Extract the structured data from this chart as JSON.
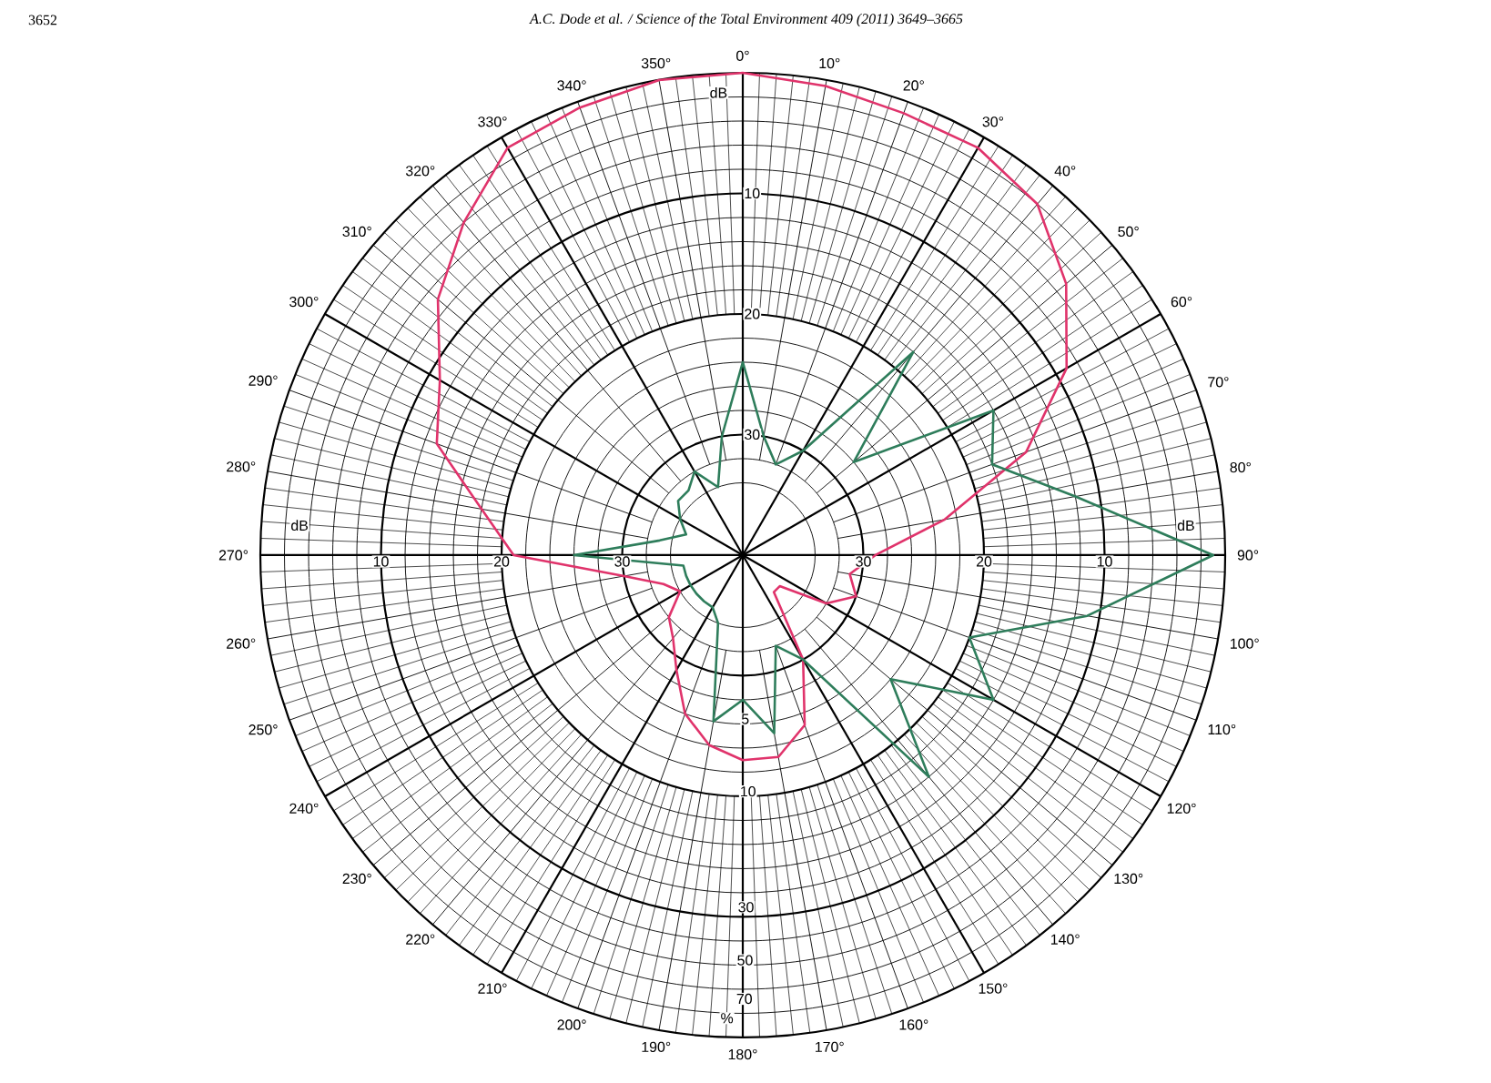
{
  "chart_data": {
    "type": "radar",
    "title": "A.C. Dode et al. / Science of the Total Environment 409 (2011) 3649–3665",
    "ylabel": "dB",
    "categories": [
      "0°",
      "10°",
      "20°",
      "30°",
      "40°",
      "50°",
      "60°",
      "70°",
      "80°",
      "90°",
      "100°",
      "110°",
      "120°",
      "130°",
      "140°",
      "150°",
      "160°",
      "170°",
      "180°",
      "190°",
      "200°",
      "210°",
      "220°",
      "230°",
      "240°",
      "250°",
      "260°",
      "270°",
      "280°",
      "290°",
      "300°",
      "310°",
      "320°",
      "330°",
      "340°",
      "350°"
    ],
    "ylim": [
      40,
      0
    ],
    "yticks": [
      10,
      20,
      30
    ],
    "grid": true,
    "series": [
      {
        "color": "#e0336b",
        "values": [
          0,
          0.5,
          1,
          1,
          2,
          5,
          9,
          15,
          23,
          29,
          31,
          30,
          32,
          36,
          36,
          30,
          25,
          23,
          23,
          24,
          26,
          29,
          31,
          32,
          34,
          33,
          30,
          21,
          18,
          13,
          11,
          7,
          4,
          1,
          0.5,
          0
        ]
      },
      {
        "color": "#2e7d5b",
        "values": [
          24,
          30,
          32,
          30,
          18,
          28,
          16,
          18,
          12,
          1,
          11,
          20,
          16,
          24,
          16,
          30,
          32,
          25,
          28,
          26,
          34,
          35,
          35,
          35,
          35,
          35,
          35,
          26,
          33,
          35,
          34,
          33,
          33,
          32,
          34,
          30
        ]
      }
    ],
    "annotations": [
      "3652",
      "5",
      "10",
      "30",
      "50",
      "70",
      "%",
      "10",
      "20",
      "30",
      "30",
      "20",
      "10"
    ]
  }
}
